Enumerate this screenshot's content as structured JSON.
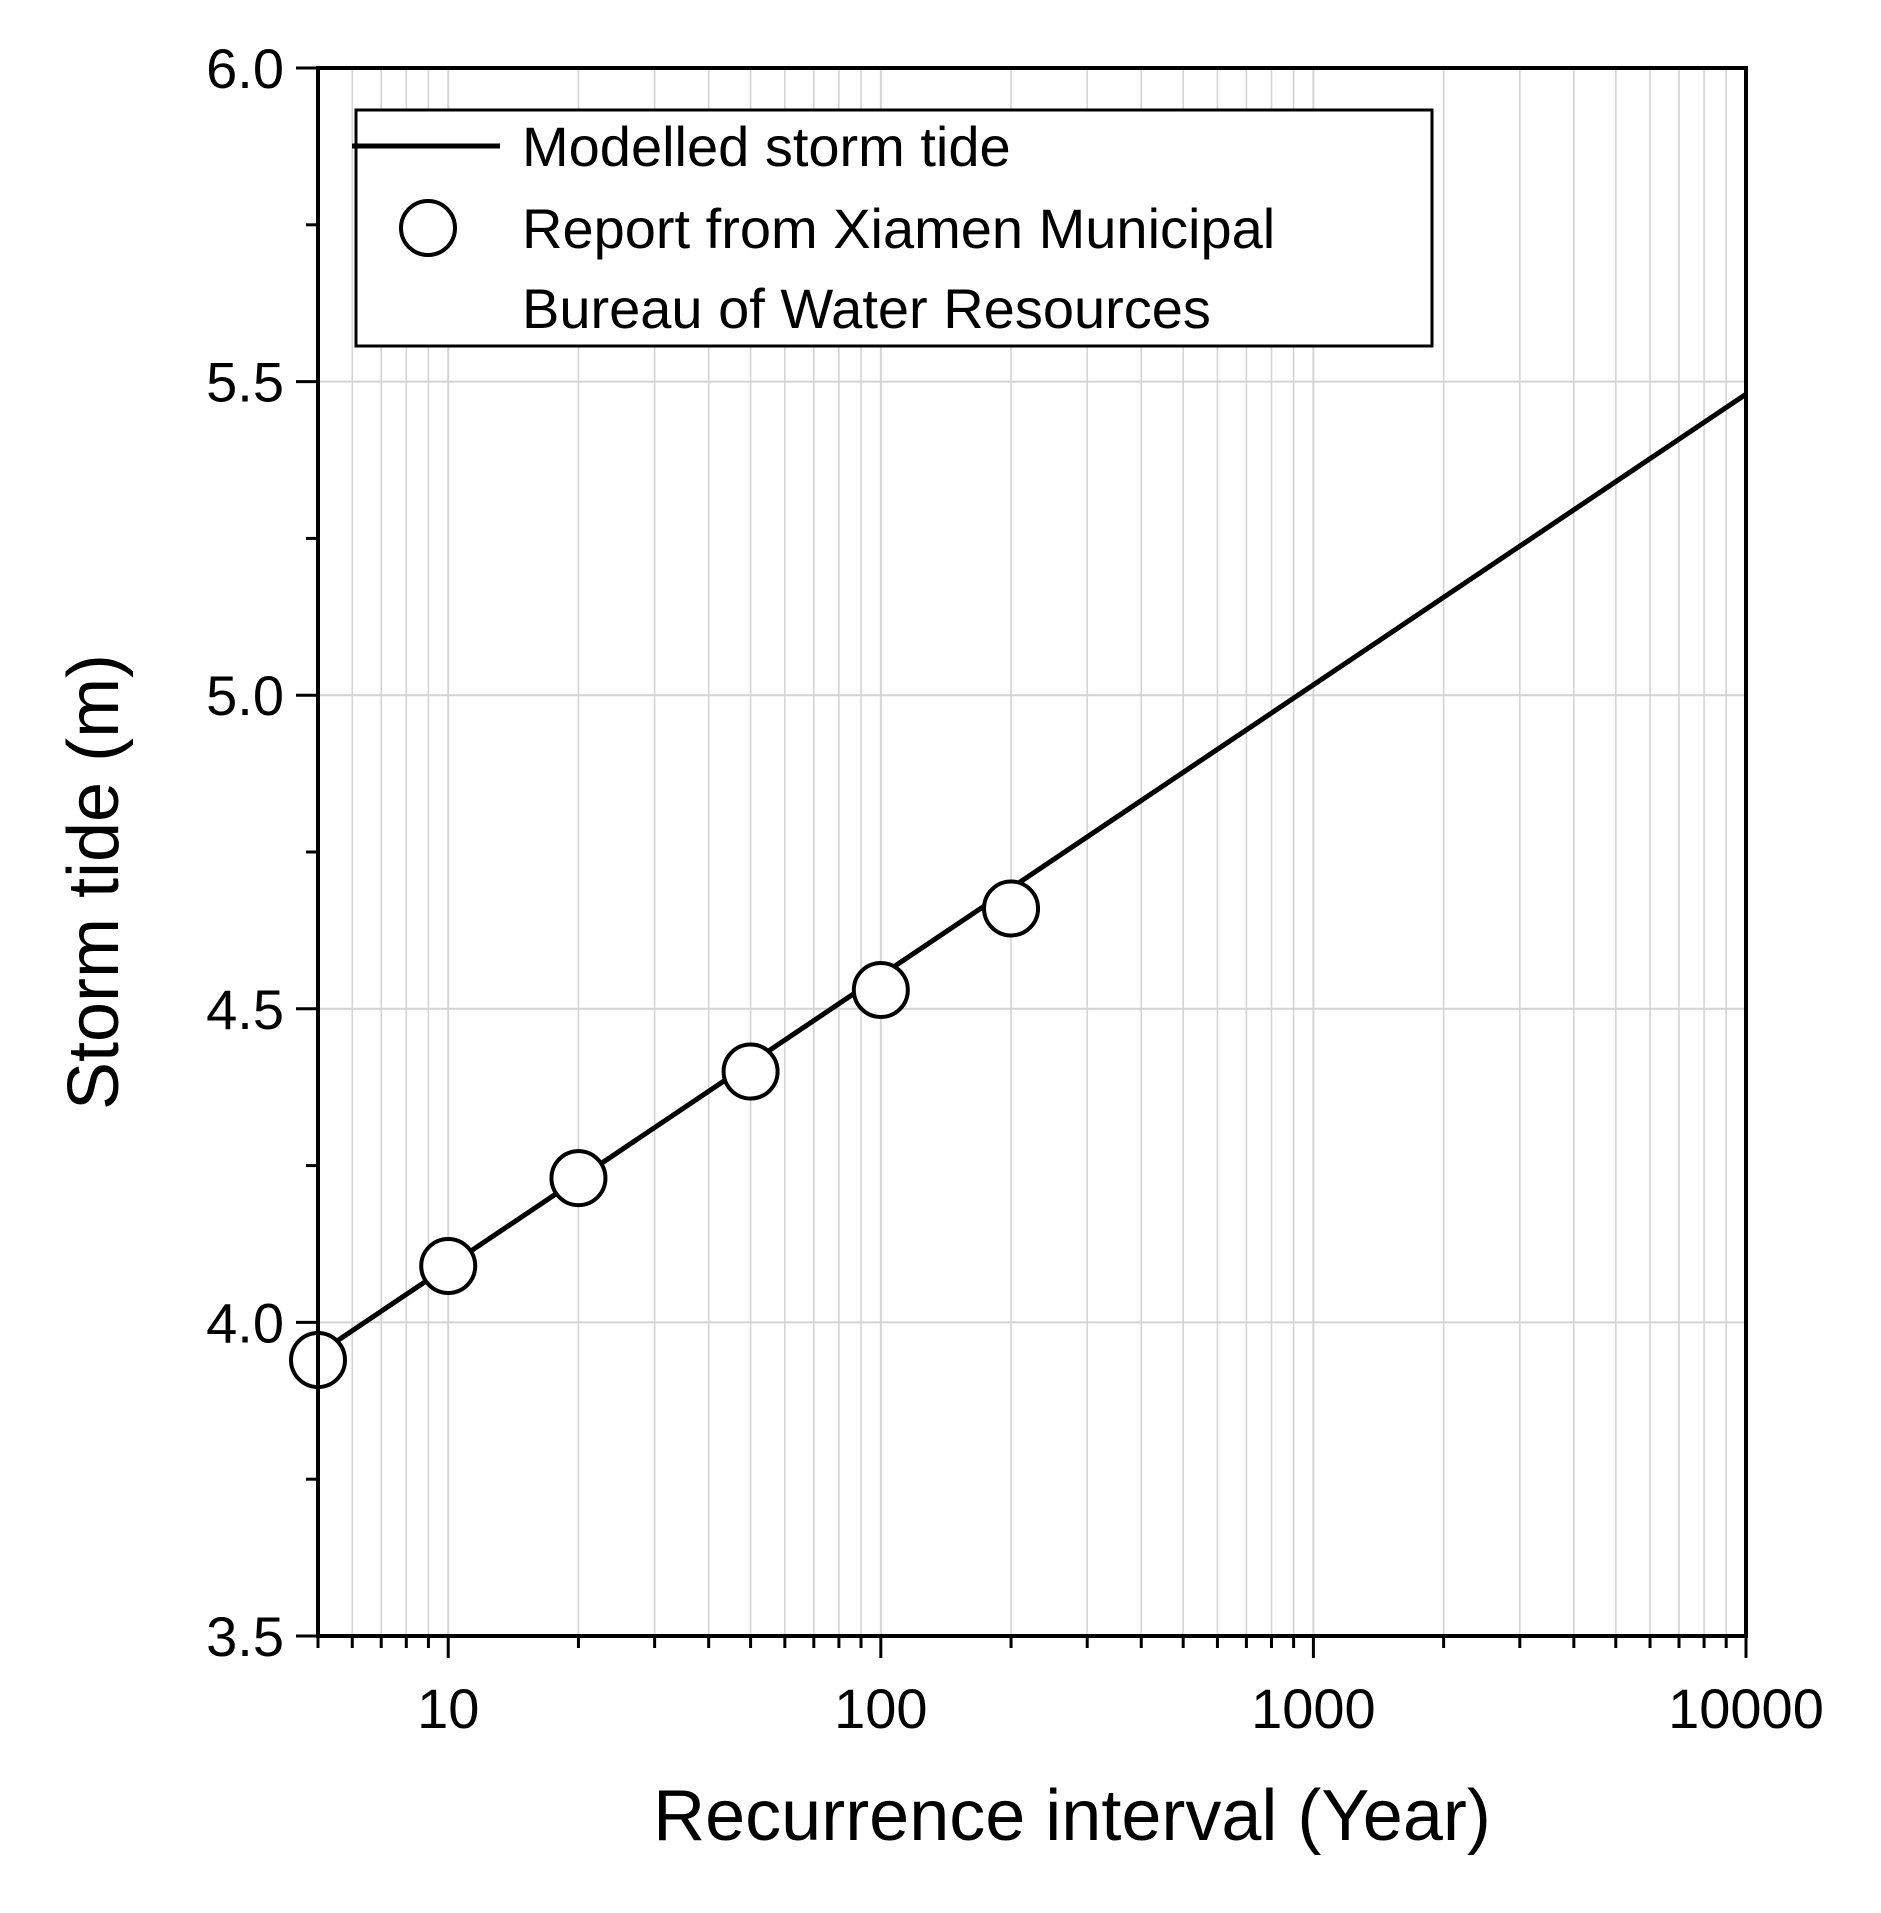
{
  "chart_data": {
    "type": "line",
    "title": "",
    "xlabel": "Recurrence interval (Year)",
    "ylabel": "Storm tide (m)",
    "xscale": "log",
    "xlim": [
      5,
      10000
    ],
    "ylim": [
      3.5,
      6.0
    ],
    "x_ticks": [
      10,
      100,
      1000,
      10000
    ],
    "x_tick_labels": [
      "10",
      "100",
      "1000",
      "10000"
    ],
    "y_ticks": [
      3.5,
      4.0,
      4.5,
      5.0,
      5.5,
      6.0
    ],
    "y_tick_labels": [
      "3.5",
      "4.0",
      "4.5",
      "5.0",
      "5.5",
      "6.0"
    ],
    "grid": true,
    "legend_position": "top-left",
    "series": [
      {
        "name": "Modelled storm tide",
        "kind": "line",
        "color": "#000000",
        "x": [
          5,
          10000
        ],
        "y": [
          3.95,
          5.48
        ]
      },
      {
        "name": "Report from Xiamen Municipal Bureau of Water Resources",
        "kind": "scatter",
        "marker": "open-circle",
        "color": "#000000",
        "x": [
          5,
          10,
          20,
          50,
          100,
          200
        ],
        "y": [
          3.94,
          4.09,
          4.23,
          4.4,
          4.53,
          4.66
        ]
      }
    ],
    "legend": {
      "line_label": "Modelled storm tide",
      "scatter_label_line1": "Report from Xiamen Municipal",
      "scatter_label_line2": "Bureau of Water Resources"
    }
  }
}
